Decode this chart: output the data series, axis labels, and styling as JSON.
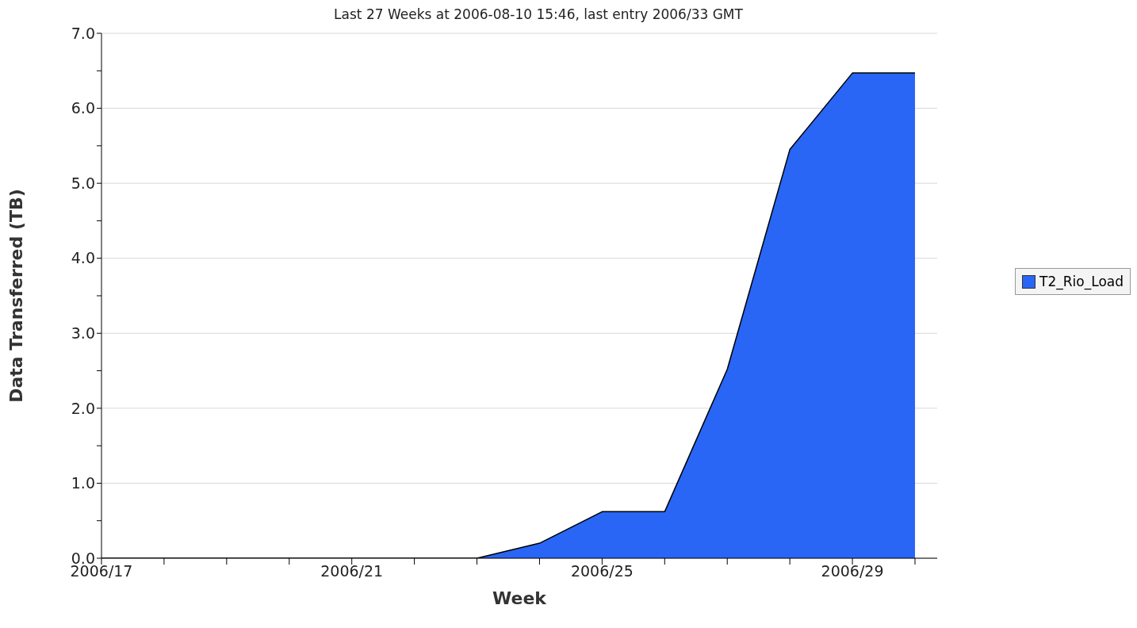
{
  "chart_data": {
    "type": "area",
    "subtitle": "Last 27 Weeks at 2006-08-10 15:46, last entry 2006/33 GMT",
    "xlabel": "Week",
    "ylabel": "Data Transferred (TB)",
    "categories": [
      "2006/17",
      null,
      null,
      null,
      "2006/21",
      null,
      null,
      null,
      "2006/25",
      null,
      null,
      null,
      "2006/29",
      null
    ],
    "series": [
      {
        "name": "T2_Rio_Load",
        "color": "#2966f5",
        "values": [
          0,
          0,
          0,
          0,
          0,
          0,
          0,
          0.2,
          0.62,
          0.62,
          2.52,
          5.45,
          6.47,
          6.47
        ]
      }
    ],
    "ylim": [
      0,
      7
    ],
    "yticks": [
      {
        "value": 0,
        "label": "0.0"
      },
      {
        "value": 0.5,
        "label": null
      },
      {
        "value": 1,
        "label": "1.0"
      },
      {
        "value": 1.5,
        "label": null
      },
      {
        "value": 2,
        "label": "2.0"
      },
      {
        "value": 2.5,
        "label": null
      },
      {
        "value": 3,
        "label": "3.0"
      },
      {
        "value": 3.5,
        "label": null
      },
      {
        "value": 4,
        "label": "4.0"
      },
      {
        "value": 4.5,
        "label": null
      },
      {
        "value": 5,
        "label": "5.0"
      },
      {
        "value": 5.5,
        "label": null
      },
      {
        "value": 6,
        "label": "6.0"
      },
      {
        "value": 6.5,
        "label": null
      },
      {
        "value": 7,
        "label": "7.0"
      }
    ],
    "grid": "y",
    "legend": "right"
  }
}
